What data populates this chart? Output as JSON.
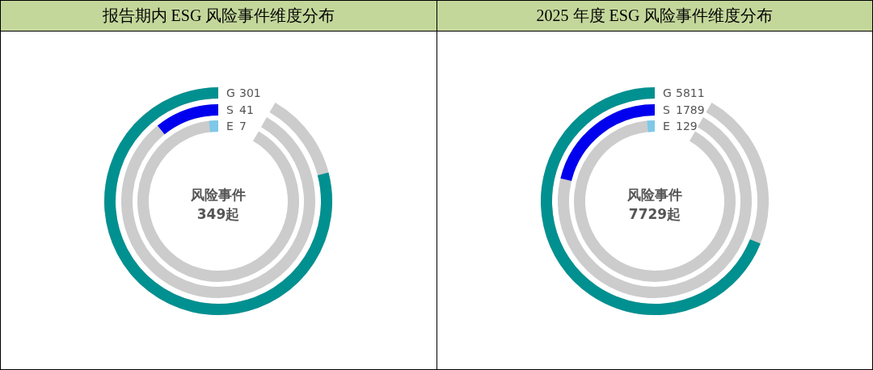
{
  "chart_data": [
    {
      "type": "other",
      "title": "报告期内 ESG 风险事件维度分布",
      "categories": [
        "G",
        "S",
        "E"
      ],
      "values": [
        301,
        41,
        7
      ],
      "colors": [
        "#009090",
        "#0000ee",
        "#7ec8e8"
      ],
      "data_labels": true,
      "annotations": [
        "风险事件",
        "349起"
      ]
    },
    {
      "type": "other",
      "title": "2025 年度 ESG 风险事件维度分布",
      "categories": [
        "G",
        "S",
        "E"
      ],
      "values": [
        5811,
        1789,
        129
      ],
      "colors": [
        "#009090",
        "#0000ee",
        "#7ec8e8"
      ],
      "data_labels": true,
      "annotations": [
        "风险事件",
        "7729起"
      ]
    }
  ]
}
